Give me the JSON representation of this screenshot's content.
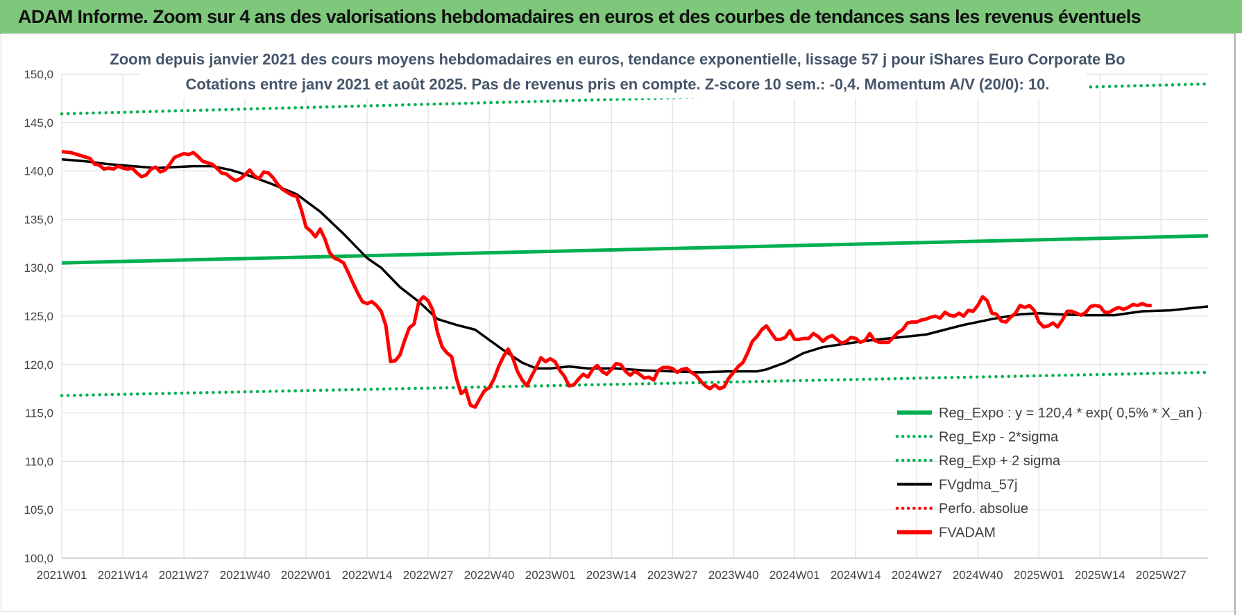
{
  "header": {
    "title": "ADAM Informe. Zoom sur 4 ans des valorisations hebdomadaires en euros et des courbes de tendances sans les revenus éventuels"
  },
  "chart_data": {
    "type": "line",
    "title": "Zoom depuis janvier 2021 des cours moyens hebdomadaires en euros, tendance exponentielle, lissage 57 j pour iShares Euro Corporate Bo",
    "subtitle": "Cotations entre janv 2021 et août 2025. Pas de revenus pris en compte. Z-score 10 sem.: -0,4. Momentum A/V (20/0): 10.",
    "xlabel": "",
    "ylabel": "",
    "ylim": [
      100,
      150
    ],
    "yticks": [
      "100,0",
      "105,0",
      "110,0",
      "115,0",
      "120,0",
      "125,0",
      "130,0",
      "135,0",
      "140,0",
      "145,0",
      "150,0"
    ],
    "xticks": [
      "2021W01",
      "2021W14",
      "2021W27",
      "2021W40",
      "2022W01",
      "2022W14",
      "2022W27",
      "2022W40",
      "2023W01",
      "2023W14",
      "2023W27",
      "2023W40",
      "2024W01",
      "2024W14",
      "2024W27",
      "2024W40",
      "2025W01",
      "2025W14",
      "2025W27"
    ],
    "x_weeks_total": 244,
    "grid": true,
    "legend_position": "bottom-right",
    "series": [
      {
        "name": "Reg_Expo : y = 120,4 * exp( 0,5% *  X_an )",
        "style": "solid",
        "color": "#00b050",
        "points": [
          [
            0,
            130.5
          ],
          [
            244,
            133.3
          ]
        ]
      },
      {
        "name": "Reg_Exp - 2*sigma",
        "style": "dotted",
        "color": "#00b050",
        "points": [
          [
            0,
            116.8
          ],
          [
            244,
            119.2
          ]
        ]
      },
      {
        "name": "Reg_Exp + 2 sigma",
        "style": "dotted",
        "color": "#00b050",
        "points": [
          [
            0,
            145.9
          ],
          [
            244,
            149.0
          ]
        ]
      },
      {
        "name": "FVgdma_57j",
        "style": "solid",
        "color": "#000000",
        "points": [
          [
            0,
            141.2
          ],
          [
            5,
            141.0
          ],
          [
            10,
            140.7
          ],
          [
            20,
            140.3
          ],
          [
            28,
            140.5
          ],
          [
            32,
            140.5
          ],
          [
            36,
            140.1
          ],
          [
            40,
            139.5
          ],
          [
            45,
            138.6
          ],
          [
            50,
            137.6
          ],
          [
            55,
            135.8
          ],
          [
            60,
            133.5
          ],
          [
            65,
            131.0
          ],
          [
            68,
            130.0
          ],
          [
            72,
            128.0
          ],
          [
            76,
            126.5
          ],
          [
            80,
            124.7
          ],
          [
            84,
            124.1
          ],
          [
            88,
            123.6
          ],
          [
            90,
            122.9
          ],
          [
            94,
            121.5
          ],
          [
            98,
            120.2
          ],
          [
            101,
            119.6
          ],
          [
            104,
            119.6
          ],
          [
            108,
            119.8
          ],
          [
            112,
            119.6
          ],
          [
            118,
            119.6
          ],
          [
            124,
            119.4
          ],
          [
            130,
            119.3
          ],
          [
            136,
            119.2
          ],
          [
            142,
            119.3
          ],
          [
            148,
            119.3
          ],
          [
            150,
            119.5
          ],
          [
            154,
            120.2
          ],
          [
            158,
            121.2
          ],
          [
            162,
            121.8
          ],
          [
            166,
            122.1
          ],
          [
            172,
            122.5
          ],
          [
            178,
            122.8
          ],
          [
            184,
            123.1
          ],
          [
            188,
            123.6
          ],
          [
            192,
            124.1
          ],
          [
            198,
            124.7
          ],
          [
            204,
            125.2
          ],
          [
            208,
            125.3
          ],
          [
            212,
            125.2
          ],
          [
            218,
            125.1
          ],
          [
            224,
            125.1
          ],
          [
            230,
            125.5
          ],
          [
            236,
            125.6
          ],
          [
            240,
            125.8
          ],
          [
            244,
            126.0
          ]
        ]
      },
      {
        "name": "Perfo. absolue",
        "style": "dotted",
        "color": "#ff0000",
        "points": []
      },
      {
        "name": "FVADAM",
        "style": "solid",
        "color": "#ff0000",
        "points": [
          [
            0,
            142.0
          ],
          [
            2,
            141.9
          ],
          [
            4,
            141.6
          ],
          [
            6,
            141.3
          ],
          [
            7,
            140.7
          ],
          [
            8,
            140.6
          ],
          [
            9,
            140.2
          ],
          [
            10,
            140.3
          ],
          [
            11,
            140.2
          ],
          [
            12,
            140.5
          ],
          [
            13,
            140.3
          ],
          [
            14,
            140.2
          ],
          [
            15,
            140.3
          ],
          [
            16,
            139.8
          ],
          [
            17,
            139.4
          ],
          [
            18,
            139.6
          ],
          [
            19,
            140.2
          ],
          [
            20,
            140.4
          ],
          [
            21,
            139.9
          ],
          [
            22,
            140.1
          ],
          [
            23,
            140.7
          ],
          [
            24,
            141.4
          ],
          [
            26,
            141.8
          ],
          [
            27,
            141.7
          ],
          [
            28,
            141.9
          ],
          [
            29,
            141.5
          ],
          [
            30,
            141.0
          ],
          [
            32,
            140.7
          ],
          [
            33,
            140.3
          ],
          [
            34,
            139.8
          ],
          [
            35,
            139.7
          ],
          [
            36,
            139.3
          ],
          [
            37,
            139.0
          ],
          [
            38,
            139.2
          ],
          [
            39,
            139.6
          ],
          [
            40,
            140.1
          ],
          [
            41,
            139.5
          ],
          [
            42,
            139.2
          ],
          [
            43,
            139.9
          ],
          [
            44,
            139.8
          ],
          [
            45,
            139.3
          ],
          [
            46,
            138.6
          ],
          [
            47,
            138.1
          ],
          [
            48,
            137.8
          ],
          [
            49,
            137.5
          ],
          [
            50,
            137.4
          ],
          [
            51,
            136.0
          ],
          [
            52,
            134.2
          ],
          [
            53,
            133.8
          ],
          [
            54,
            133.2
          ],
          [
            55,
            134.0
          ],
          [
            56,
            133.0
          ],
          [
            57,
            131.6
          ],
          [
            58,
            131.0
          ],
          [
            59,
            130.8
          ],
          [
            60,
            130.5
          ],
          [
            61,
            129.5
          ],
          [
            62,
            128.4
          ],
          [
            63,
            127.4
          ],
          [
            64,
            126.5
          ],
          [
            65,
            126.3
          ],
          [
            66,
            126.5
          ],
          [
            67,
            126.1
          ],
          [
            68,
            125.5
          ],
          [
            69,
            124.0
          ],
          [
            70,
            120.3
          ],
          [
            71,
            120.4
          ],
          [
            72,
            121.0
          ],
          [
            73,
            122.5
          ],
          [
            74,
            123.8
          ],
          [
            75,
            124.2
          ],
          [
            76,
            126.5
          ],
          [
            77,
            127.0
          ],
          [
            78,
            126.6
          ],
          [
            79,
            125.6
          ],
          [
            80,
            123.3
          ],
          [
            81,
            121.8
          ],
          [
            82,
            121.2
          ],
          [
            83,
            120.8
          ],
          [
            84,
            118.6
          ],
          [
            85,
            117.0
          ],
          [
            86,
            117.4
          ],
          [
            87,
            115.8
          ],
          [
            88,
            115.6
          ],
          [
            89,
            116.5
          ],
          [
            90,
            117.3
          ],
          [
            91,
            117.6
          ],
          [
            92,
            118.5
          ],
          [
            93,
            119.8
          ],
          [
            94,
            120.8
          ],
          [
            95,
            121.6
          ],
          [
            96,
            120.7
          ],
          [
            97,
            119.3
          ],
          [
            98,
            118.4
          ],
          [
            99,
            117.8
          ],
          [
            100,
            118.8
          ],
          [
            101,
            119.7
          ],
          [
            102,
            120.7
          ],
          [
            103,
            120.3
          ],
          [
            104,
            120.6
          ],
          [
            105,
            120.3
          ],
          [
            106,
            119.4
          ],
          [
            107,
            118.8
          ],
          [
            108,
            117.8
          ],
          [
            109,
            117.9
          ],
          [
            110,
            118.5
          ],
          [
            111,
            119.0
          ],
          [
            112,
            118.7
          ],
          [
            113,
            119.5
          ],
          [
            114,
            119.9
          ],
          [
            115,
            119.3
          ],
          [
            116,
            119.0
          ],
          [
            117,
            119.5
          ],
          [
            118,
            120.1
          ],
          [
            119,
            120.0
          ],
          [
            120,
            119.3
          ],
          [
            121,
            118.9
          ],
          [
            122,
            119.3
          ],
          [
            123,
            119.0
          ],
          [
            124,
            118.6
          ],
          [
            125,
            118.7
          ],
          [
            126,
            118.4
          ],
          [
            127,
            119.4
          ],
          [
            128,
            119.7
          ],
          [
            129,
            119.7
          ],
          [
            130,
            119.6
          ],
          [
            131,
            119.2
          ],
          [
            132,
            119.5
          ],
          [
            133,
            119.6
          ],
          [
            134,
            119.2
          ],
          [
            135,
            118.9
          ],
          [
            136,
            118.3
          ],
          [
            137,
            117.8
          ],
          [
            138,
            117.5
          ],
          [
            139,
            117.9
          ],
          [
            140,
            117.5
          ],
          [
            141,
            117.7
          ],
          [
            142,
            118.6
          ],
          [
            143,
            119.2
          ],
          [
            144,
            119.8
          ],
          [
            145,
            120.2
          ],
          [
            146,
            121.2
          ],
          [
            147,
            122.4
          ],
          [
            148,
            122.9
          ],
          [
            149,
            123.6
          ],
          [
            150,
            124.0
          ],
          [
            151,
            123.3
          ],
          [
            152,
            122.6
          ],
          [
            153,
            122.6
          ],
          [
            154,
            122.8
          ],
          [
            155,
            123.5
          ],
          [
            156,
            122.6
          ],
          [
            157,
            122.6
          ],
          [
            158,
            122.7
          ],
          [
            159,
            122.7
          ],
          [
            160,
            123.2
          ],
          [
            161,
            122.9
          ],
          [
            162,
            122.4
          ],
          [
            163,
            122.8
          ],
          [
            164,
            123.0
          ],
          [
            165,
            122.6
          ],
          [
            166,
            122.2
          ],
          [
            167,
            122.4
          ],
          [
            168,
            122.8
          ],
          [
            169,
            122.7
          ],
          [
            170,
            122.3
          ],
          [
            171,
            122.5
          ],
          [
            172,
            123.2
          ],
          [
            173,
            122.5
          ],
          [
            174,
            122.3
          ],
          [
            175,
            122.3
          ],
          [
            176,
            122.3
          ],
          [
            177,
            122.8
          ],
          [
            178,
            123.3
          ],
          [
            179,
            123.6
          ],
          [
            180,
            124.3
          ],
          [
            181,
            124.4
          ],
          [
            182,
            124.4
          ],
          [
            183,
            124.6
          ],
          [
            184,
            124.7
          ],
          [
            185,
            124.9
          ],
          [
            186,
            125.0
          ],
          [
            187,
            124.8
          ],
          [
            188,
            125.4
          ],
          [
            189,
            125.1
          ],
          [
            190,
            125.0
          ],
          [
            191,
            125.3
          ],
          [
            192,
            125.0
          ],
          [
            193,
            125.6
          ],
          [
            194,
            125.5
          ],
          [
            195,
            126.1
          ],
          [
            196,
            127.0
          ],
          [
            197,
            126.6
          ],
          [
            198,
            125.3
          ],
          [
            199,
            125.2
          ],
          [
            200,
            124.5
          ],
          [
            201,
            124.4
          ],
          [
            202,
            124.9
          ],
          [
            203,
            125.3
          ],
          [
            204,
            126.1
          ],
          [
            205,
            125.9
          ],
          [
            206,
            126.1
          ],
          [
            207,
            125.6
          ],
          [
            208,
            124.4
          ],
          [
            209,
            123.9
          ],
          [
            210,
            124.0
          ],
          [
            211,
            124.3
          ],
          [
            212,
            123.9
          ],
          [
            213,
            124.6
          ],
          [
            214,
            125.5
          ],
          [
            215,
            125.5
          ],
          [
            216,
            125.3
          ],
          [
            217,
            125.1
          ],
          [
            218,
            125.4
          ],
          [
            219,
            126.0
          ],
          [
            220,
            126.1
          ],
          [
            221,
            126.0
          ],
          [
            222,
            125.4
          ],
          [
            223,
            125.4
          ],
          [
            224,
            125.7
          ],
          [
            225,
            125.9
          ],
          [
            226,
            125.7
          ],
          [
            227,
            125.9
          ],
          [
            228,
            126.2
          ],
          [
            229,
            126.1
          ],
          [
            230,
            126.3
          ],
          [
            231,
            126.1
          ],
          [
            232,
            126.1
          ]
        ]
      }
    ]
  }
}
